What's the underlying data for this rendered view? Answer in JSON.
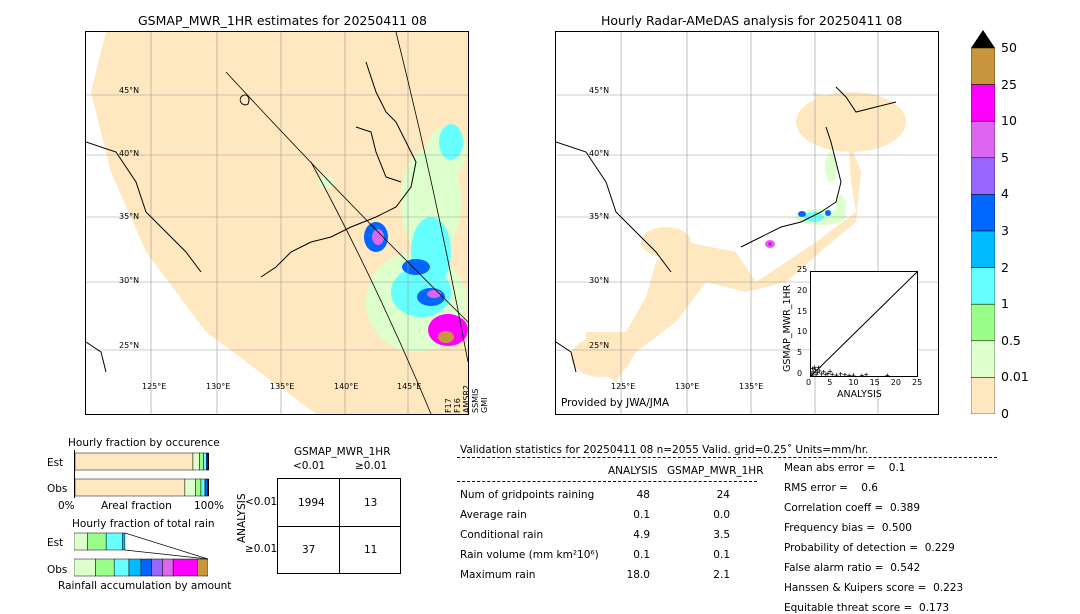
{
  "left_map": {
    "title": "GSMAP_MWR_1HR estimates for 20250411 08",
    "lat_labels": [
      "45°N",
      "40°N",
      "35°N",
      "30°N",
      "25°N"
    ],
    "lon_labels": [
      "125°E",
      "130°E",
      "135°E",
      "140°E",
      "145°E"
    ],
    "side_labels": [
      "GMI",
      "SSMIS",
      "AMSR2",
      "F16",
      "F17"
    ]
  },
  "right_map": {
    "title": "Hourly Radar-AMeDAS analysis for 20250411 08",
    "lat_labels": [
      "45°N",
      "40°N",
      "35°N",
      "30°N",
      "25°N"
    ],
    "lon_labels": [
      "125°E",
      "130°E",
      "135°E"
    ],
    "credit": "Provided by JWA/JMA"
  },
  "colorbar": {
    "labels": [
      "50",
      "25",
      "10",
      "5",
      "4",
      "3",
      "2",
      "1",
      "0.5",
      "0.01",
      "0"
    ],
    "colors": [
      "#c8963c",
      "#ff00ff",
      "#dd66ee",
      "#9966ff",
      "#0066ff",
      "#00bbff",
      "#66ffff",
      "#99ff88",
      "#ddffcc",
      "#ffe8c0"
    ]
  },
  "chart_data": [
    {
      "type": "scatter",
      "title": "",
      "xlabel": "ANALYSIS",
      "ylabel": "GSMAP_MWR_1HR",
      "xlim": [
        0,
        25
      ],
      "ylim": [
        0,
        25
      ],
      "xticks": [
        "0",
        "5",
        "10",
        "15",
        "20",
        "25"
      ],
      "yticks": [
        "0",
        "5",
        "10",
        "15",
        "20",
        "25"
      ],
      "points": [
        [
          0.2,
          0.5
        ],
        [
          0.5,
          1.0
        ],
        [
          1.0,
          1.5
        ],
        [
          1.5,
          0.8
        ],
        [
          2.0,
          1.2
        ],
        [
          0.8,
          2.1
        ],
        [
          2.5,
          0.5
        ],
        [
          3.0,
          1.0
        ],
        [
          3.5,
          0.3
        ],
        [
          4.0,
          0.6
        ],
        [
          4.5,
          1.1
        ],
        [
          5.0,
          0.4
        ],
        [
          0.3,
          0.2
        ],
        [
          1.2,
          0.3
        ],
        [
          6.0,
          0.2
        ],
        [
          7.0,
          0.5
        ],
        [
          8.0,
          0.3
        ],
        [
          9.0,
          0.1
        ],
        [
          10.0,
          0.2
        ],
        [
          12.0,
          0.1
        ],
        [
          13.0,
          0.3
        ],
        [
          18.0,
          0.1
        ],
        [
          0.4,
          1.8
        ],
        [
          1.8,
          2.0
        ]
      ],
      "diagonal": true
    },
    {
      "type": "bar",
      "title": "Hourly fraction by occurence",
      "categories": [
        "Est",
        "Obs"
      ],
      "xlabel": "Areal fraction",
      "x_tick_labels": [
        "0%",
        "100%"
      ],
      "segments": {
        "Est": [
          0.88,
          0.05,
          0.03,
          0.02,
          0.01,
          0.01
        ],
        "Obs": [
          0.82,
          0.08,
          0.04,
          0.03,
          0.02,
          0.01
        ]
      },
      "segment_colors": [
        "#ffe8c0",
        "#ddffcc",
        "#99ff88",
        "#66ffff",
        "#0066ff",
        "#000000"
      ]
    },
    {
      "type": "bar",
      "title": "Hourly fraction of total rain",
      "categories": [
        "Est",
        "Obs"
      ],
      "xlabel": "Rainfall accumulation by amount",
      "segments": {
        "Est": [
          0.1,
          0.14,
          0.12,
          0.02
        ],
        "Obs": [
          0.16,
          0.14,
          0.11,
          0.09,
          0.08,
          0.08,
          0.08,
          0.18,
          0.08
        ]
      },
      "segment_colors": [
        "#ddffcc",
        "#99ff88",
        "#66ffff",
        "#00bbff",
        "#0066ff",
        "#9966ff",
        "#dd66ee",
        "#ff00ff",
        "#c8963c"
      ]
    },
    {
      "type": "table",
      "title": "GSMAP_MWR_1HR",
      "col_headers": [
        "<0.01",
        "≥0.01"
      ],
      "row_axis_label": "ANALYSIS",
      "row_headers": [
        "<0.01",
        "≥0.01"
      ],
      "cells": [
        [
          "1994",
          "13"
        ],
        [
          "37",
          "11"
        ]
      ]
    }
  ],
  "stats": {
    "header": "Validation statistics for 20250411 08  n=2055 Valid. grid=0.25˚ Units=mm/hr.",
    "col_analysis": "ANALYSIS",
    "col_gsmap": "GSMAP_MWR_1HR",
    "rows": [
      {
        "label": "Num of gridpoints raining",
        "analysis": "48",
        "gsmap": "24"
      },
      {
        "label": "Average rain",
        "analysis": "0.1",
        "gsmap": "0.0"
      },
      {
        "label": "Conditional rain",
        "analysis": "4.9",
        "gsmap": "3.5"
      },
      {
        "label": "Rain volume (mm km²10⁶)",
        "analysis": "0.1",
        "gsmap": "0.1"
      },
      {
        "label": "Maximum rain",
        "analysis": "18.0",
        "gsmap": "2.1"
      }
    ],
    "scores": [
      "Mean abs error =    0.1",
      "RMS error =    0.6",
      "Correlation coeff =  0.389",
      "Frequency bias =  0.500",
      "Probability of detection =  0.229",
      "False alarm ratio =  0.542",
      "Hanssen & Kuipers score =  0.223",
      "Equitable threat score =  0.173"
    ]
  }
}
